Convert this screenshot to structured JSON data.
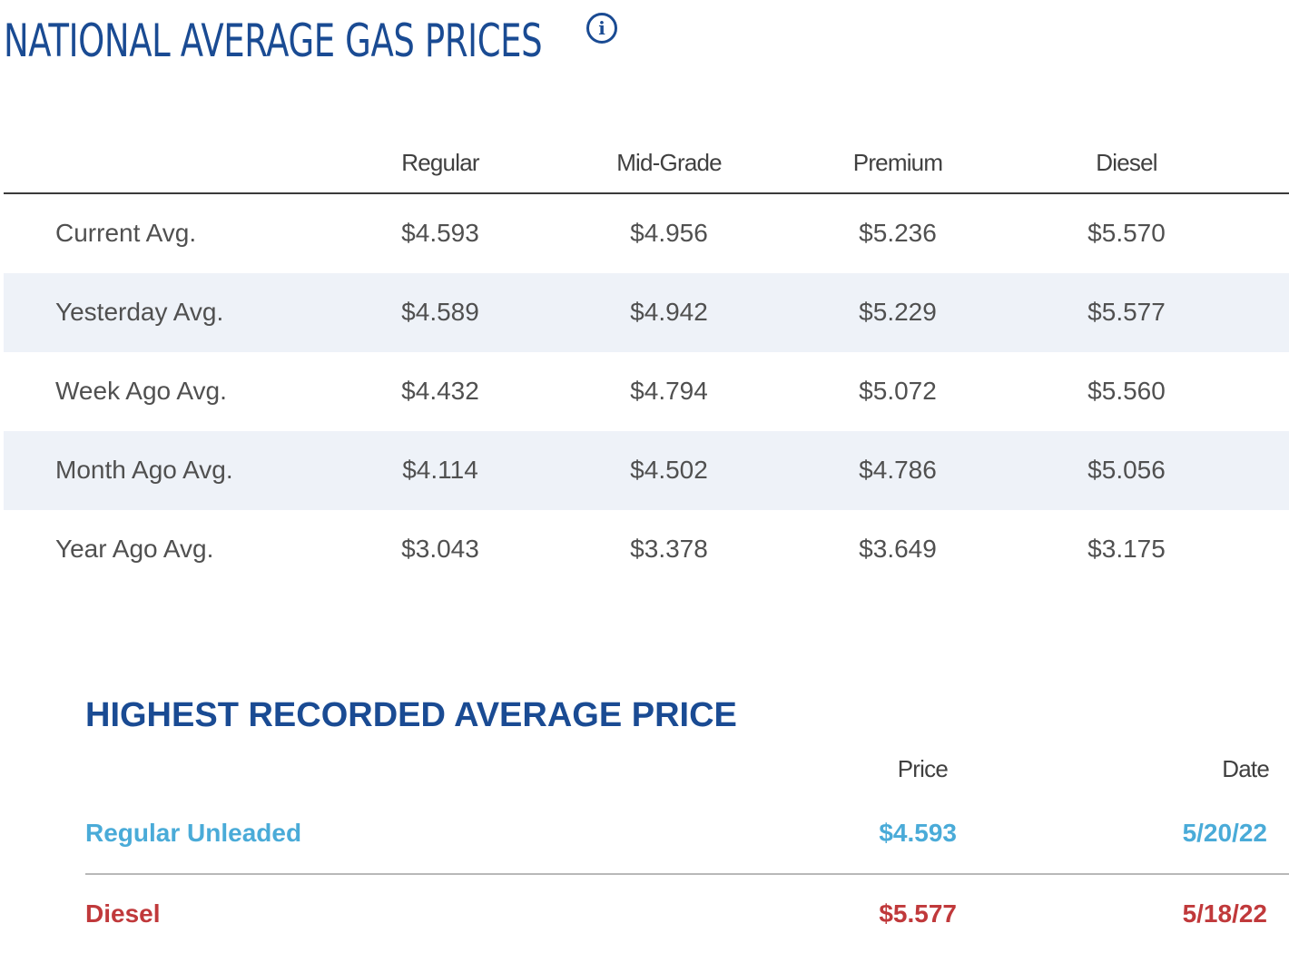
{
  "header": {
    "title": "NATIONAL AVERAGE GAS PRICES",
    "info_icon": "info-icon"
  },
  "price_table": {
    "columns": [
      "Regular",
      "Mid-Grade",
      "Premium",
      "Diesel"
    ],
    "rows": [
      {
        "label": "Current Avg.",
        "values": [
          "$4.593",
          "$4.956",
          "$5.236",
          "$5.570"
        ]
      },
      {
        "label": "Yesterday Avg.",
        "values": [
          "$4.589",
          "$4.942",
          "$5.229",
          "$5.577"
        ]
      },
      {
        "label": "Week Ago Avg.",
        "values": [
          "$4.432",
          "$4.794",
          "$5.072",
          "$5.560"
        ]
      },
      {
        "label": "Month Ago Avg.",
        "values": [
          "$4.114",
          "$4.502",
          "$4.786",
          "$5.056"
        ]
      },
      {
        "label": "Year Ago Avg.",
        "values": [
          "$3.043",
          "$3.378",
          "$3.649",
          "$3.175"
        ]
      }
    ]
  },
  "highest_record": {
    "heading": "HIGHEST RECORDED AVERAGE PRICE",
    "columns": {
      "price": "Price",
      "date": "Date"
    },
    "rows": [
      {
        "name": "Regular Unleaded",
        "price": "$4.593",
        "date": "5/20/22",
        "color": "#4aabd8"
      },
      {
        "name": "Diesel",
        "price": "$5.577",
        "date": "5/18/22",
        "color": "#c0393b"
      }
    ]
  },
  "colors": {
    "title_blue": "#1a4b93",
    "row_shade": "#eef2f8",
    "text_gray": "#505050"
  }
}
